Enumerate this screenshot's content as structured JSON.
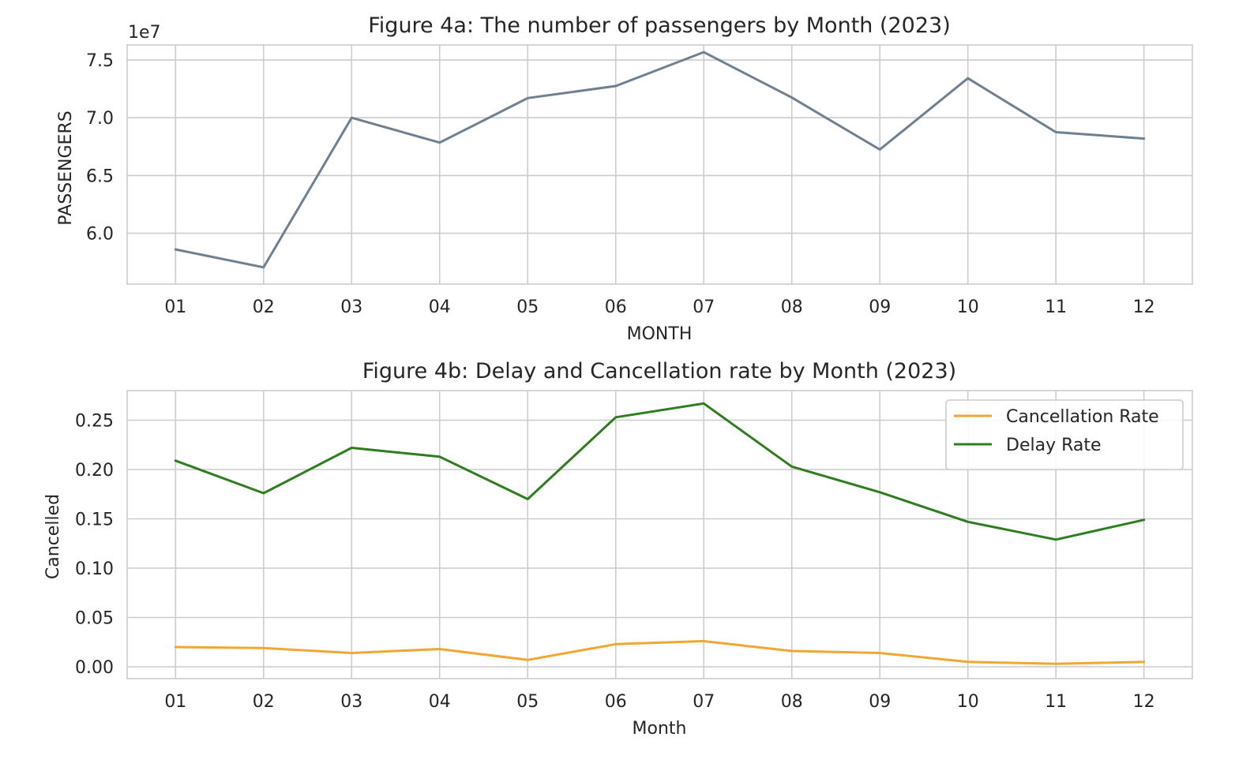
{
  "chart_data": [
    {
      "type": "line",
      "title": "Figure 4a: The number of passengers by Month (2023)",
      "xlabel": "MONTH",
      "ylabel": "PASSENGERS",
      "offset_label": "1e7",
      "categories": [
        "01",
        "02",
        "03",
        "04",
        "05",
        "06",
        "07",
        "08",
        "09",
        "10",
        "11",
        "12"
      ],
      "series": [
        {
          "values": [
            58600000,
            57050000,
            70000000,
            67850000,
            71700000,
            72750000,
            75680000,
            71750000,
            67250000,
            73420000,
            68750000,
            68200000
          ],
          "color": "#708090"
        }
      ],
      "ylim": [
        55600000,
        76300000
      ],
      "yticks": [
        60000000,
        65000000,
        70000000,
        75000000
      ],
      "ytick_labels": [
        "6.0",
        "6.5",
        "7.0",
        "7.5"
      ],
      "grid": true,
      "legend": null
    },
    {
      "type": "line",
      "title": "Figure 4b: Delay and Cancellation rate by Month (2023)",
      "xlabel": "Month",
      "ylabel": "Cancelled",
      "categories": [
        "01",
        "02",
        "03",
        "04",
        "05",
        "06",
        "07",
        "08",
        "09",
        "10",
        "11",
        "12"
      ],
      "series": [
        {
          "name": "Cancellation Rate",
          "values": [
            0.02,
            0.019,
            0.014,
            0.018,
            0.007,
            0.023,
            0.026,
            0.016,
            0.014,
            0.005,
            0.003,
            0.005
          ],
          "color": "#f2a634"
        },
        {
          "name": "Delay Rate",
          "values": [
            0.209,
            0.176,
            0.222,
            0.213,
            0.17,
            0.253,
            0.267,
            0.203,
            0.177,
            0.147,
            0.129,
            0.149
          ],
          "color": "#2e7d1e"
        }
      ],
      "ylim": [
        -0.012,
        0.28
      ],
      "yticks": [
        0.0,
        0.05,
        0.1,
        0.15,
        0.2,
        0.25
      ],
      "ytick_labels": [
        "0.00",
        "0.05",
        "0.10",
        "0.15",
        "0.20",
        "0.25"
      ],
      "grid": true,
      "legend": "top-right"
    }
  ]
}
